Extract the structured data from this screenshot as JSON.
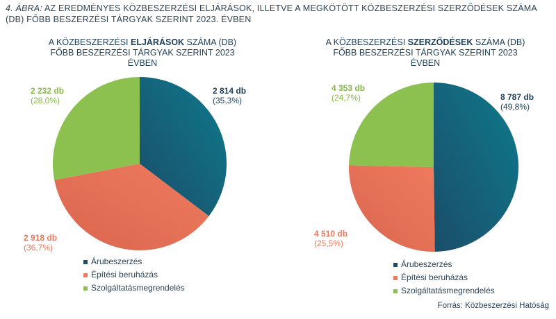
{
  "figure": {
    "number_label": "4. ábra:",
    "title": "Az eredményes közbeszerzési eljárások, illetve a megkötött közbeszerzési szerződések száma (db) főbb beszerzési tárgyak szerint 2023. évben"
  },
  "colors": {
    "arubeszerzes": "#0e7a8c",
    "arubeszerzes_dark": "#1b4d69",
    "epitesi": "#ef7a5e",
    "epitesi_dark": "#d9664e",
    "szolgaltatas": "#8cc150",
    "text_dark": "#1f3e56",
    "text_orange": "#e8795c",
    "text_green": "#86b94a"
  },
  "chart_data": [
    {
      "type": "pie",
      "title_pre": "A közbeszerzési ",
      "title_bold": "eljárások",
      "title_post": " száma (db) főbb beszerzési tárgyak szerint 2023 évben",
      "categories": [
        "Árubeszerzés",
        "Építési beruházás",
        "Szolgáltatásmegrendelés"
      ],
      "values": [
        2814,
        2918,
        2232
      ],
      "percents": [
        35.3,
        36.7,
        28.0
      ],
      "labels": [
        {
          "count": "2 814 db",
          "pct": "(35,3%)"
        },
        {
          "count": "2 918 db",
          "pct": "(36,7%)"
        },
        {
          "count": "2 232 db",
          "pct": "(28,0%)"
        }
      ],
      "legend_position": "bottom"
    },
    {
      "type": "pie",
      "title_pre": "A közbeszerzési ",
      "title_bold": "szerződések",
      "title_post": " száma (db) főbb beszerzési tárgyak szerint 2023 évben",
      "categories": [
        "Árubeszerzés",
        "Építési beruházás",
        "Szolgáltatásmegrendelés"
      ],
      "values": [
        8787,
        4510,
        4353
      ],
      "percents": [
        49.8,
        25.5,
        24.7
      ],
      "labels": [
        {
          "count": "8 787 db",
          "pct": "(49,8%)"
        },
        {
          "count": "4 510 db",
          "pct": "(25,5%)"
        },
        {
          "count": "4 353 db",
          "pct": "(24,7%)"
        }
      ],
      "legend_position": "bottom"
    }
  ],
  "source": "Forrás: Közbeszerzési Hatóság"
}
